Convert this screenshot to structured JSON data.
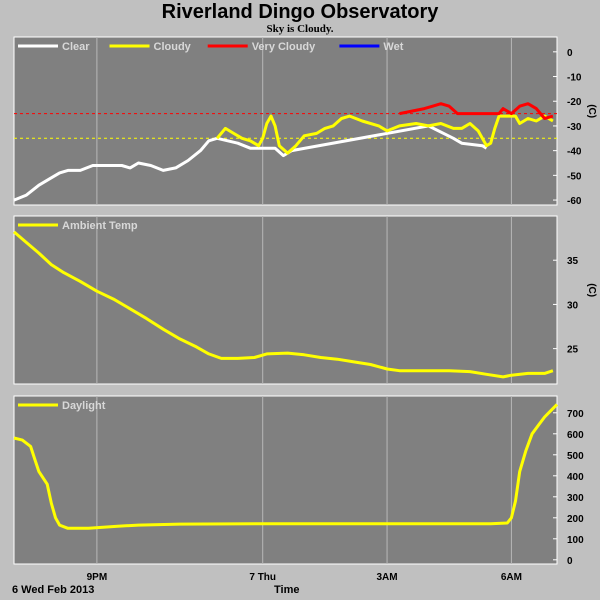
{
  "header": {
    "title": "Riverland Dingo Observatory",
    "subtitle": "Sky is Cloudy."
  },
  "footer": {
    "date_label": "6 Wed Feb 2013",
    "x_axis_label": "Time"
  },
  "colors": {
    "panel_bg": "#808080",
    "page_bg": "#c0c0c0",
    "clear": "#ffffff",
    "cloudy": "#ffff00",
    "very_cloudy": "#ff0000",
    "wet": "#0000ff",
    "threshold_very_cloudy": "#ff0000",
    "threshold_cloudy": "#ffff00"
  },
  "chart_data": [
    {
      "type": "line",
      "name": "sky",
      "x_unit": "hours since 18:00",
      "xlim": [
        0,
        13.1
      ],
      "x_ticks": [
        {
          "x": 2.0,
          "label": "9PM"
        },
        {
          "x": 6.0,
          "label": "7 Thu"
        },
        {
          "x": 9.0,
          "label": "3AM"
        },
        {
          "x": 12.0,
          "label": "6AM"
        }
      ],
      "ylim": [
        -62,
        6
      ],
      "y_ticks": [
        0,
        -10,
        -20,
        -30,
        -40,
        -50,
        -60
      ],
      "ylabel": "(C)",
      "legend": [
        {
          "label": "Clear",
          "color": "#ffffff"
        },
        {
          "label": "Cloudy",
          "color": "#ffff00"
        },
        {
          "label": "Very Cloudy",
          "color": "#ff0000"
        },
        {
          "label": "Wet",
          "color": "#0000ff"
        }
      ],
      "thresholds": [
        {
          "y": -25,
          "color": "#ff0000"
        },
        {
          "y": -35,
          "color": "#ffff00"
        }
      ],
      "series": [
        {
          "name": "Clear",
          "color": "#ffffff",
          "points": [
            [
              0,
              -60
            ],
            [
              0.3,
              -58
            ],
            [
              0.6,
              -54
            ],
            [
              0.9,
              -51
            ],
            [
              1.1,
              -49
            ],
            [
              1.3,
              -48
            ],
            [
              1.6,
              -48
            ],
            [
              1.9,
              -46
            ],
            [
              2.2,
              -46
            ],
            [
              2.6,
              -46
            ],
            [
              2.8,
              -47
            ],
            [
              3.0,
              -45
            ],
            [
              3.3,
              -46
            ],
            [
              3.6,
              -48
            ],
            [
              3.9,
              -47
            ],
            [
              4.2,
              -44
            ],
            [
              4.5,
              -40
            ],
            [
              4.7,
              -36
            ],
            [
              4.9,
              -35
            ],
            [
              5.4,
              -37
            ],
            [
              5.7,
              -39
            ],
            [
              6.3,
              -39
            ],
            [
              6.5,
              -42
            ],
            [
              6.7,
              -40
            ],
            [
              10.0,
              -30
            ],
            [
              10.6,
              -35
            ],
            [
              10.8,
              -37
            ],
            [
              11.3,
              -38
            ],
            [
              11.4,
              -39
            ]
          ]
        },
        {
          "name": "Cloudy",
          "color": "#ffff00",
          "points": [
            [
              4.9,
              -35
            ],
            [
              5.1,
              -31
            ],
            [
              5.3,
              -33
            ],
            [
              5.5,
              -35
            ],
            [
              5.7,
              -36
            ],
            [
              5.9,
              -38
            ],
            [
              6.0,
              -35
            ],
            [
              6.1,
              -29
            ],
            [
              6.2,
              -26
            ],
            [
              6.3,
              -30
            ],
            [
              6.4,
              -38
            ],
            [
              6.6,
              -41
            ],
            [
              6.8,
              -38
            ],
            [
              7.0,
              -34
            ],
            [
              7.3,
              -33
            ],
            [
              7.5,
              -31
            ],
            [
              7.7,
              -30
            ],
            [
              7.9,
              -27
            ],
            [
              8.1,
              -26
            ],
            [
              8.4,
              -28
            ],
            [
              8.8,
              -30
            ],
            [
              9.0,
              -32
            ],
            [
              9.3,
              -30
            ],
            [
              9.7,
              -29
            ],
            [
              10.0,
              -30
            ],
            [
              10.3,
              -29
            ],
            [
              10.6,
              -31
            ],
            [
              10.8,
              -31
            ],
            [
              11.0,
              -29
            ],
            [
              11.2,
              -32
            ],
            [
              11.4,
              -38
            ],
            [
              11.5,
              -37
            ],
            [
              11.6,
              -31
            ],
            [
              11.7,
              -26
            ],
            [
              11.8,
              -26
            ],
            [
              12.1,
              -26
            ],
            [
              12.2,
              -29
            ],
            [
              12.4,
              -27
            ],
            [
              12.6,
              -28
            ],
            [
              12.8,
              -26
            ],
            [
              13.0,
              -28
            ]
          ]
        },
        {
          "name": "Very Cloudy",
          "color": "#ff0000",
          "points": [
            [
              9.3,
              -25
            ],
            [
              9.6,
              -24
            ],
            [
              9.9,
              -23
            ],
            [
              10.1,
              -22
            ],
            [
              10.3,
              -21
            ],
            [
              10.5,
              -22
            ],
            [
              10.7,
              -25
            ],
            [
              11.7,
              -25
            ],
            [
              11.8,
              -23
            ],
            [
              12.0,
              -25
            ],
            [
              12.2,
              -22
            ],
            [
              12.4,
              -21
            ],
            [
              12.6,
              -23
            ],
            [
              12.8,
              -27
            ],
            [
              13.0,
              -26
            ]
          ]
        }
      ]
    },
    {
      "type": "line",
      "name": "ambient",
      "x_unit": "hours since 18:00",
      "xlim": [
        0,
        13.1
      ],
      "ylim": [
        21,
        40
      ],
      "y_ticks": [
        35,
        30,
        25
      ],
      "ylabel": "(C)",
      "legend": [
        {
          "label": "Ambient Temp",
          "color": "#ffff00"
        }
      ],
      "series": [
        {
          "name": "Ambient Temp",
          "color": "#ffff00",
          "points": [
            [
              0,
              38.2
            ],
            [
              0.3,
              37
            ],
            [
              0.6,
              35.8
            ],
            [
              0.9,
              34.5
            ],
            [
              1.2,
              33.6
            ],
            [
              1.6,
              32.6
            ],
            [
              2.0,
              31.5
            ],
            [
              2.4,
              30.6
            ],
            [
              2.8,
              29.5
            ],
            [
              3.2,
              28.4
            ],
            [
              3.6,
              27.2
            ],
            [
              4.0,
              26.1
            ],
            [
              4.4,
              25.2
            ],
            [
              4.7,
              24.4
            ],
            [
              5.0,
              23.9
            ],
            [
              5.4,
              23.9
            ],
            [
              5.8,
              24.0
            ],
            [
              6.1,
              24.4
            ],
            [
              6.6,
              24.5
            ],
            [
              7.0,
              24.3
            ],
            [
              7.4,
              24.0
            ],
            [
              7.8,
              23.8
            ],
            [
              8.2,
              23.5
            ],
            [
              8.6,
              23.2
            ],
            [
              9.0,
              22.7
            ],
            [
              9.3,
              22.5
            ],
            [
              9.7,
              22.5
            ],
            [
              10.1,
              22.5
            ],
            [
              10.5,
              22.5
            ],
            [
              11.0,
              22.4
            ],
            [
              11.4,
              22.1
            ],
            [
              11.8,
              21.8
            ],
            [
              12.0,
              22.0
            ],
            [
              12.4,
              22.2
            ],
            [
              12.8,
              22.2
            ],
            [
              13.0,
              22.5
            ]
          ]
        }
      ]
    },
    {
      "type": "line",
      "name": "daylight",
      "x_unit": "hours since 18:00",
      "xlim": [
        0,
        13.1
      ],
      "ylim": [
        -20,
        780
      ],
      "y_ticks": [
        700,
        600,
        500,
        400,
        300,
        200,
        100,
        0
      ],
      "legend": [
        {
          "label": "Daylight",
          "color": "#ffff00"
        }
      ],
      "series": [
        {
          "name": "Daylight",
          "color": "#ffff00",
          "points": [
            [
              0,
              580
            ],
            [
              0.2,
              570
            ],
            [
              0.4,
              540
            ],
            [
              0.5,
              480
            ],
            [
              0.6,
              420
            ],
            [
              0.8,
              360
            ],
            [
              0.9,
              270
            ],
            [
              1.0,
              200
            ],
            [
              1.1,
              165
            ],
            [
              1.3,
              150
            ],
            [
              1.8,
              150
            ],
            [
              2.5,
              160
            ],
            [
              3.0,
              165
            ],
            [
              4.0,
              170
            ],
            [
              6.0,
              172
            ],
            [
              8.0,
              172
            ],
            [
              10.0,
              172
            ],
            [
              11.5,
              172
            ],
            [
              11.9,
              175
            ],
            [
              12.0,
              200
            ],
            [
              12.1,
              280
            ],
            [
              12.2,
              420
            ],
            [
              12.35,
              520
            ],
            [
              12.5,
              600
            ],
            [
              12.65,
              640
            ],
            [
              12.8,
              680
            ],
            [
              12.95,
              710
            ],
            [
              13.1,
              740
            ]
          ]
        }
      ]
    }
  ]
}
